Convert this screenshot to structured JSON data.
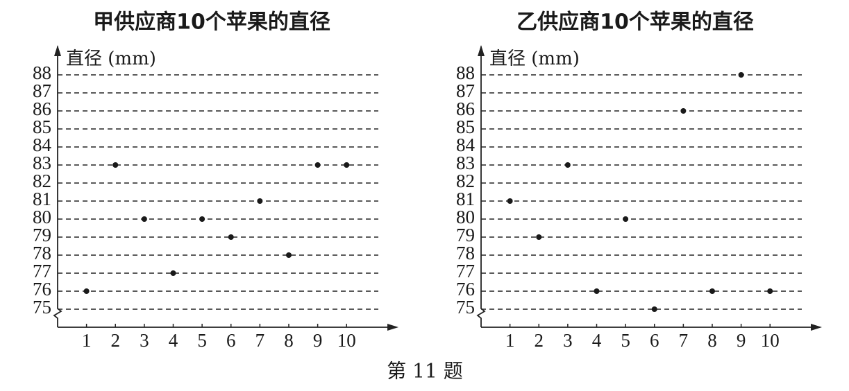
{
  "chart_data": [
    {
      "type": "scatter",
      "title": "甲供应商10个苹果的直径",
      "y_label": "直径 (mm)",
      "x": [
        1,
        2,
        3,
        4,
        5,
        6,
        7,
        8,
        9,
        10
      ],
      "y": [
        76,
        83,
        80,
        77,
        80,
        79,
        81,
        78,
        83,
        83
      ],
      "xlim": [
        0,
        11.7
      ],
      "ylim": [
        74,
        89.5
      ],
      "xticks": [
        1,
        2,
        3,
        4,
        5,
        6,
        7,
        8,
        9,
        10
      ],
      "yticks": [
        75,
        76,
        77,
        78,
        79,
        80,
        81,
        82,
        83,
        84,
        85,
        86,
        87,
        88
      ],
      "grid": true,
      "color": "#1a1a1a"
    },
    {
      "type": "scatter",
      "title": "乙供应商10个苹果的直径",
      "y_label": "直径 (mm)",
      "x": [
        1,
        2,
        3,
        4,
        5,
        6,
        7,
        8,
        9,
        10
      ],
      "y": [
        81,
        79,
        83,
        76,
        80,
        75,
        86,
        76,
        88,
        76
      ],
      "xlim": [
        0,
        11.7
      ],
      "ylim": [
        74,
        89.5
      ],
      "xticks": [
        1,
        2,
        3,
        4,
        5,
        6,
        7,
        8,
        9,
        10
      ],
      "yticks": [
        75,
        76,
        77,
        78,
        79,
        80,
        81,
        82,
        83,
        84,
        85,
        86,
        87,
        88
      ],
      "grid": true,
      "color": "#1a1a1a"
    }
  ],
  "caption": "第 11 题"
}
